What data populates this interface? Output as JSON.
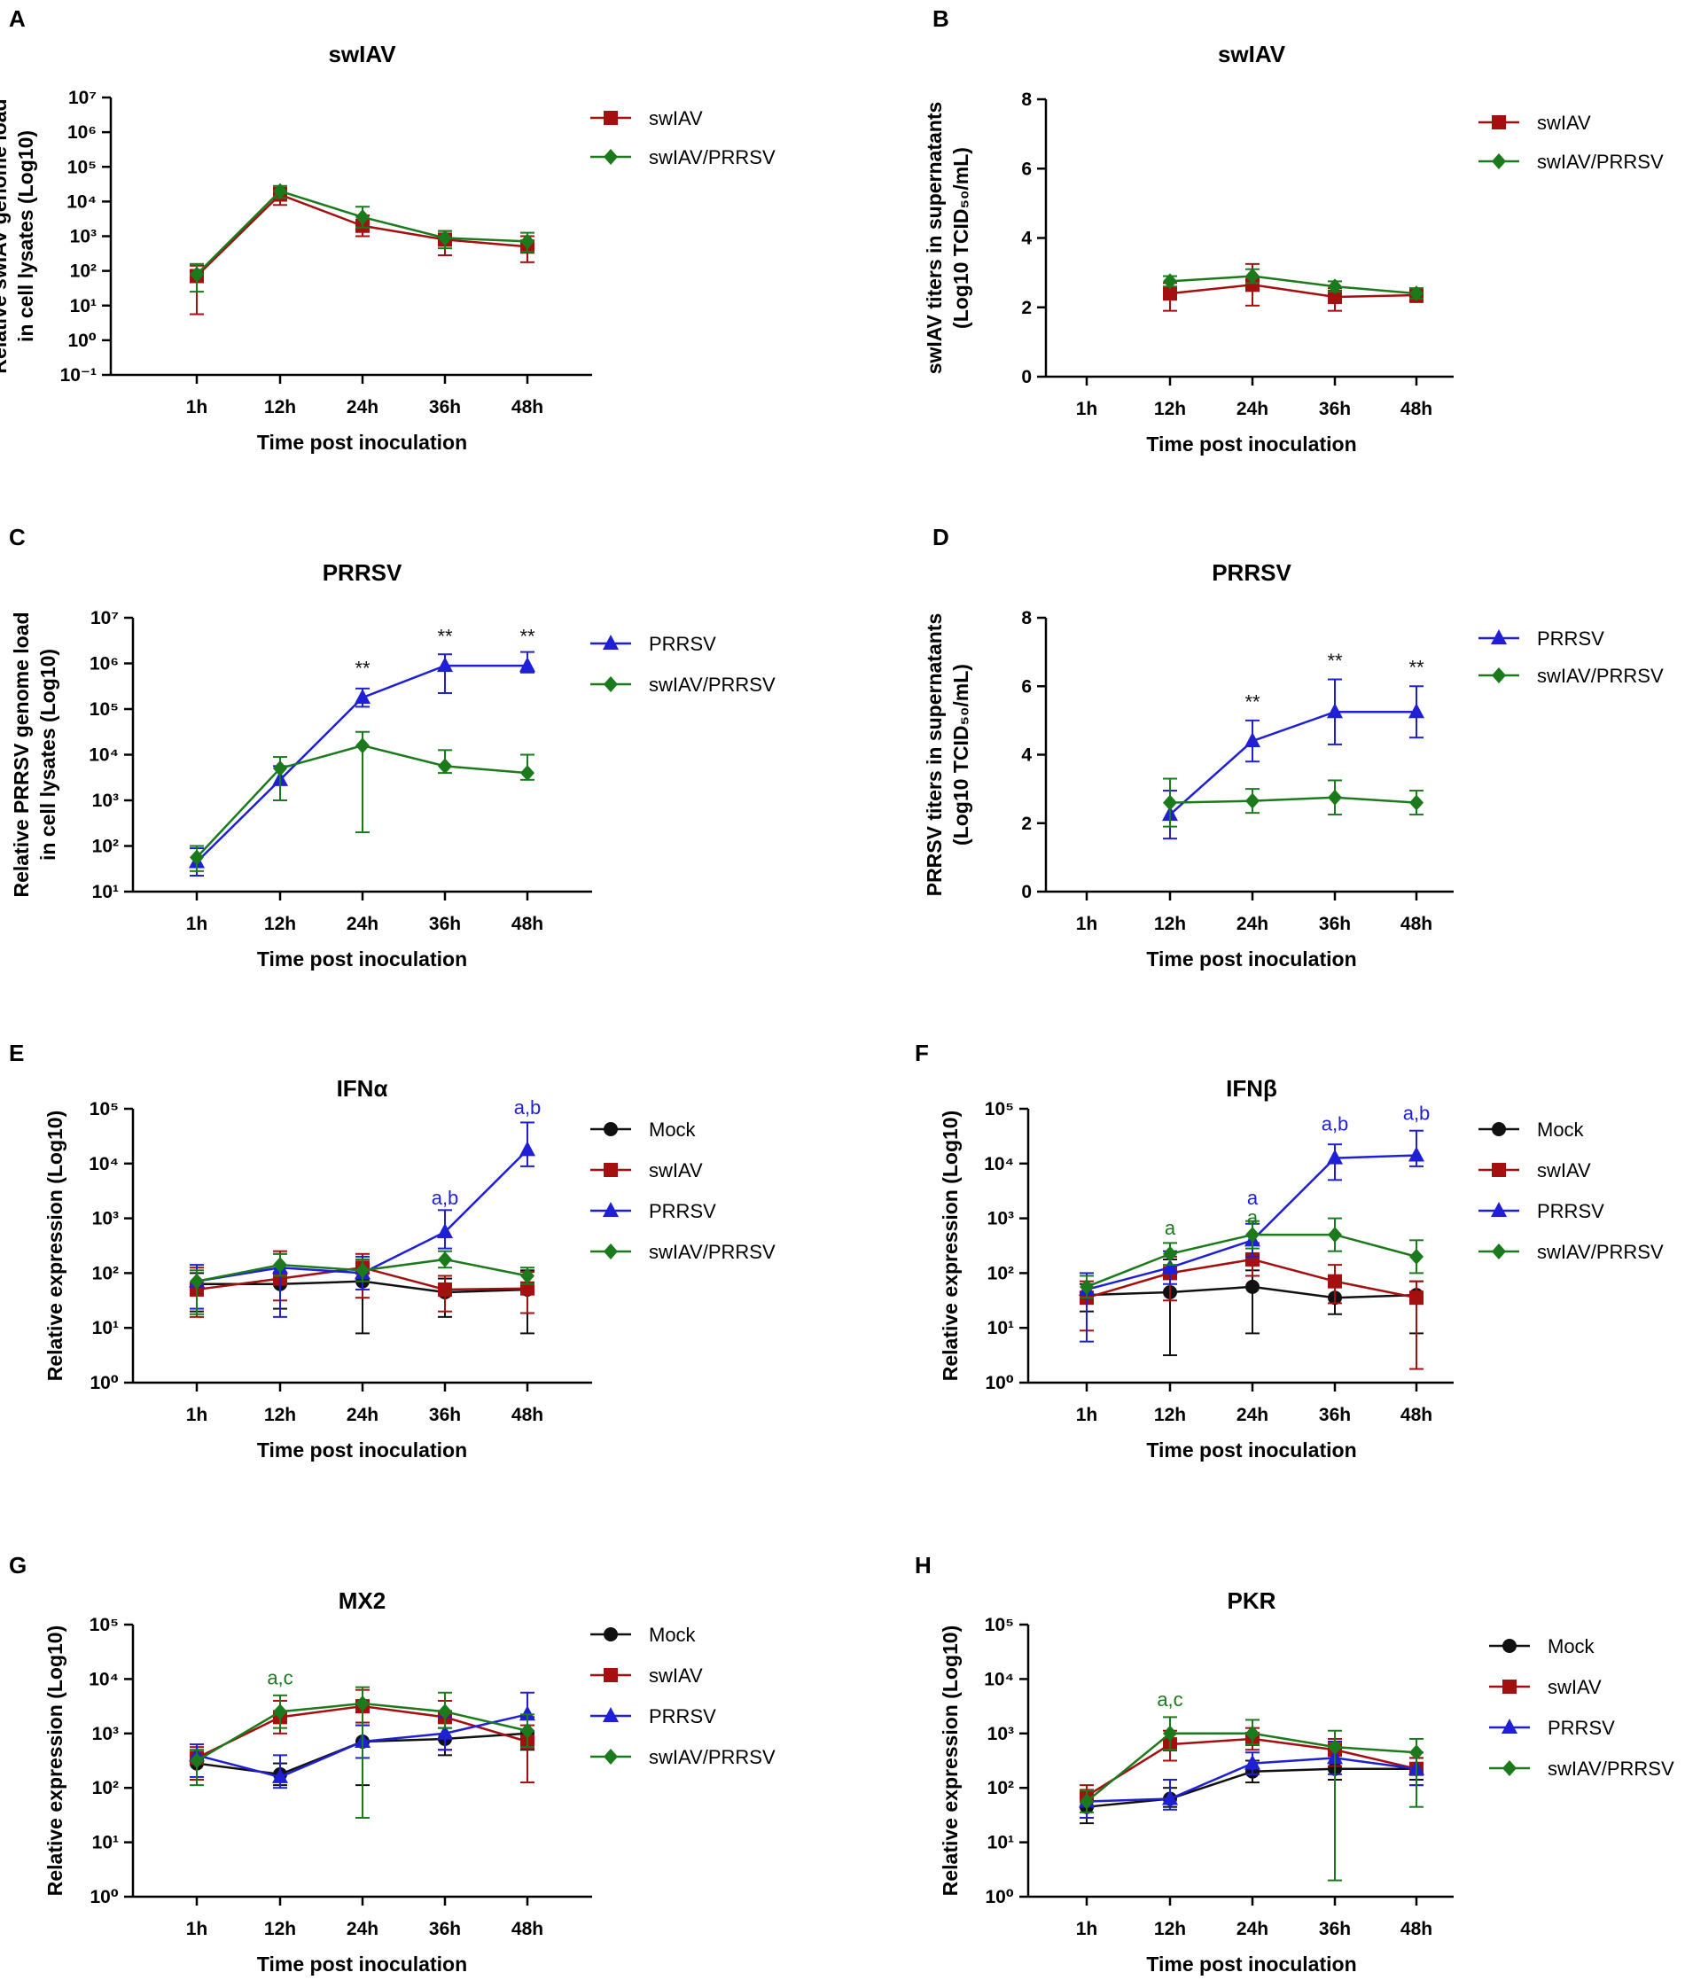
{
  "colors": {
    "Mock": "#111111",
    "swIAV": "#a40f0f",
    "PRRSV": "#1f1fd6",
    "swIAV/PRRSV": "#1b7a1b"
  },
  "markers": {
    "Mock": "circle",
    "swIAV": "square",
    "PRRSV": "triangle",
    "swIAV/PRRSV": "diamond"
  },
  "chart_data": [
    {
      "panel": "A",
      "type": "line",
      "title": "swIAV",
      "xlabel": "Time post inoculation",
      "ylabel": [
        "Relative swIAV genome load",
        "in cell lysates (Log10)"
      ],
      "categories": [
        "1h",
        "12h",
        "24h",
        "36h",
        "48h"
      ],
      "yscale": "log",
      "ylim": [
        -1,
        7
      ],
      "yticks": [
        "10⁻¹",
        "10⁰",
        "10¹",
        "10²",
        "10³",
        "10⁴",
        "10⁵",
        "10⁶",
        "10⁷"
      ],
      "legend": [
        "swIAV",
        "swIAV/PRRSV"
      ],
      "series": [
        {
          "name": "swIAV",
          "values": [
            1.85,
            4.2,
            3.3,
            2.9,
            2.7
          ],
          "err_up": [
            0.3,
            0.2,
            0.3,
            0.25,
            0.3
          ],
          "err_down": [
            1.1,
            0.3,
            0.3,
            0.45,
            0.45
          ]
        },
        {
          "name": "swIAV/PRRSV",
          "values": [
            1.9,
            4.3,
            3.55,
            2.95,
            2.85
          ],
          "err_up": [
            0.3,
            0.15,
            0.3,
            0.2,
            0.25
          ],
          "err_down": [
            0.5,
            0.2,
            0.3,
            0.3,
            0.3
          ]
        }
      ],
      "annotations": []
    },
    {
      "panel": "B",
      "type": "line",
      "title": "swIAV",
      "xlabel": "Time post inoculation",
      "ylabel": [
        "swIAV titers in supernatants",
        "(Log10 TCID₅₀/mL)"
      ],
      "categories": [
        "1h",
        "12h",
        "24h",
        "36h",
        "48h"
      ],
      "yscale": "linear",
      "ylim": [
        0,
        8
      ],
      "yticks": [
        "0",
        "2",
        "4",
        "6",
        "8"
      ],
      "legend": [
        "swIAV",
        "swIAV/PRRSV"
      ],
      "series": [
        {
          "name": "swIAV",
          "start": 1,
          "values": [
            null,
            2.4,
            2.65,
            2.3,
            2.35
          ],
          "err_up": [
            0,
            0.3,
            0.6,
            0.25,
            0.2
          ],
          "err_down": [
            0,
            0.5,
            0.6,
            0.4,
            0.2
          ]
        },
        {
          "name": "swIAV/PRRSV",
          "start": 1,
          "values": [
            null,
            2.75,
            2.9,
            2.6,
            2.4
          ],
          "err_up": [
            0,
            0.15,
            0.2,
            0.15,
            0.15
          ],
          "err_down": [
            0,
            0.15,
            0.2,
            0.15,
            0.15
          ]
        }
      ],
      "annotations": []
    },
    {
      "panel": "C",
      "type": "line",
      "title": "PRRSV",
      "xlabel": "Time post inoculation",
      "ylabel": [
        "Relative PRRSV genome load",
        "in cell lysates (Log10)"
      ],
      "categories": [
        "1h",
        "12h",
        "24h",
        "36h",
        "48h"
      ],
      "yscale": "log",
      "ylim": [
        1,
        7
      ],
      "yticks": [
        "10¹",
        "10²",
        "10³",
        "10⁴",
        "10⁵",
        "10⁶",
        "10⁷"
      ],
      "legend": [
        "PRRSV",
        "swIAV/PRRSV"
      ],
      "series": [
        {
          "name": "PRRSV",
          "values": [
            1.65,
            3.45,
            5.25,
            5.95,
            5.95
          ],
          "err_up": [
            0.3,
            0.3,
            0.2,
            0.25,
            0.3
          ],
          "err_down": [
            0.3,
            0.45,
            0.2,
            0.6,
            0.15
          ]
        },
        {
          "name": "swIAV/PRRSV",
          "values": [
            1.75,
            3.7,
            4.2,
            3.75,
            3.6
          ],
          "err_up": [
            0.25,
            0.25,
            0.3,
            0.35,
            0.4
          ],
          "err_down": [
            0.3,
            0.7,
            1.9,
            0.15,
            0.15
          ]
        }
      ],
      "annotations": [
        {
          "text": "**",
          "x": "24h",
          "y": 5.75,
          "color": "#111111"
        },
        {
          "text": "**",
          "x": "36h",
          "y": 6.45,
          "color": "#111111"
        },
        {
          "text": "**",
          "x": "48h",
          "y": 6.45,
          "color": "#111111"
        }
      ]
    },
    {
      "panel": "D",
      "type": "line",
      "title": "PRRSV",
      "xlabel": "Time post inoculation",
      "ylabel": [
        "PRRSV titers in supernatants",
        "(Log10 TCID₅₀/mL)"
      ],
      "categories": [
        "1h",
        "12h",
        "24h",
        "36h",
        "48h"
      ],
      "yscale": "linear",
      "ylim": [
        0,
        8
      ],
      "yticks": [
        "0",
        "2",
        "4",
        "6",
        "8"
      ],
      "legend": [
        "PRRSV",
        "swIAV/PRRSV"
      ],
      "series": [
        {
          "name": "PRRSV",
          "start": 1,
          "values": [
            null,
            2.25,
            4.4,
            5.25,
            5.25
          ],
          "err_up": [
            0,
            0.7,
            0.6,
            0.95,
            0.75
          ],
          "err_down": [
            0,
            0.7,
            0.6,
            0.95,
            0.75
          ]
        },
        {
          "name": "swIAV/PRRSV",
          "start": 1,
          "values": [
            null,
            2.6,
            2.65,
            2.75,
            2.6
          ],
          "err_up": [
            0,
            0.7,
            0.35,
            0.5,
            0.35
          ],
          "err_down": [
            0,
            0.7,
            0.35,
            0.5,
            0.35
          ]
        }
      ],
      "annotations": [
        {
          "text": "**",
          "x": "24h",
          "y": 5.35,
          "color": "#111111"
        },
        {
          "text": "**",
          "x": "36h",
          "y": 6.55,
          "color": "#111111"
        },
        {
          "text": "**",
          "x": "48h",
          "y": 6.35,
          "color": "#111111"
        }
      ]
    },
    {
      "panel": "E",
      "type": "line",
      "title": "IFNα",
      "xlabel": "Time post inoculation",
      "ylabel": [
        "Relative expression (Log10)"
      ],
      "categories": [
        "1h",
        "12h",
        "24h",
        "36h",
        "48h"
      ],
      "yscale": "log",
      "ylim": [
        0,
        5
      ],
      "yticks": [
        "10⁰",
        "10¹",
        "10²",
        "10³",
        "10⁴",
        "10⁵"
      ],
      "legend": [
        "Mock",
        "swIAV",
        "PRRSV",
        "swIAV/PRRSV"
      ],
      "series": [
        {
          "name": "Mock",
          "values": [
            1.8,
            1.8,
            1.85,
            1.65,
            1.7
          ],
          "err_up": [
            0.2,
            0.2,
            0.3,
            0.25,
            0.35
          ],
          "err_down": [
            0.5,
            0.45,
            0.95,
            0.45,
            0.8
          ]
        },
        {
          "name": "swIAV",
          "values": [
            1.7,
            1.9,
            2.1,
            1.7,
            1.72
          ],
          "err_up": [
            0.4,
            0.5,
            0.25,
            0.25,
            0.3
          ],
          "err_down": [
            0.5,
            0.4,
            0.55,
            0.4,
            0.45
          ]
        },
        {
          "name": "PRRSV",
          "values": [
            1.85,
            2.1,
            2.0,
            2.75,
            4.25
          ],
          "err_up": [
            0.3,
            0.25,
            0.3,
            0.4,
            0.5
          ],
          "err_down": [
            0.5,
            0.9,
            0.3,
            0.3,
            0.3
          ]
        },
        {
          "name": "swIAV/PRRSV",
          "values": [
            1.85,
            2.15,
            2.05,
            2.25,
            1.95
          ],
          "err_up": [
            0.2,
            0.2,
            0.2,
            0.15,
            0.15
          ],
          "err_down": [
            0.6,
            0.2,
            0.2,
            0.15,
            0.15
          ]
        }
      ],
      "annotations": [
        {
          "text": "a,b",
          "x": "36h",
          "y": 3.25,
          "color": "#1f1fd6"
        },
        {
          "text": "a,b",
          "x": "48h",
          "y": 4.9,
          "color": "#1f1fd6"
        }
      ]
    },
    {
      "panel": "F",
      "type": "line",
      "title": "IFNβ",
      "xlabel": "Time post inoculation",
      "ylabel": [
        "Relative expression (Log10)"
      ],
      "categories": [
        "1h",
        "12h",
        "24h",
        "36h",
        "48h"
      ],
      "yscale": "log",
      "ylim": [
        0,
        5
      ],
      "yticks": [
        "10⁰",
        "10¹",
        "10²",
        "10³",
        "10⁴",
        "10⁵"
      ],
      "legend": [
        "Mock",
        "swIAV",
        "PRRSV",
        "swIAV/PRRSV"
      ],
      "series": [
        {
          "name": "Mock",
          "values": [
            1.6,
            1.65,
            1.75,
            1.55,
            1.6
          ],
          "err_up": [
            0.2,
            0.6,
            0.3,
            0.25,
            0.25
          ],
          "err_down": [
            0.3,
            1.15,
            0.85,
            0.3,
            0.7
          ]
        },
        {
          "name": "swIAV",
          "values": [
            1.55,
            2.0,
            2.25,
            1.85,
            1.55
          ],
          "err_up": [
            0.3,
            0.3,
            0.3,
            0.3,
            0.3
          ],
          "err_down": [
            0.6,
            0.5,
            0.3,
            0.4,
            1.3
          ]
        },
        {
          "name": "PRRSV",
          "values": [
            1.7,
            2.1,
            2.6,
            4.1,
            4.15
          ],
          "err_up": [
            0.3,
            0.3,
            0.3,
            0.25,
            0.45
          ],
          "err_down": [
            0.95,
            0.3,
            0.3,
            0.4,
            0.2
          ]
        },
        {
          "name": "swIAV/PRRSV",
          "values": [
            1.75,
            2.35,
            2.7,
            2.7,
            2.3
          ],
          "err_up": [
            0.2,
            0.2,
            0.25,
            0.3,
            0.3
          ],
          "err_down": [
            0.2,
            0.2,
            0.25,
            0.3,
            0.3
          ]
        }
      ],
      "annotations": [
        {
          "text": "a",
          "x": "12h",
          "y": 2.7,
          "color": "#1b7a1b"
        },
        {
          "text": "a",
          "x": "24h",
          "y": 2.9,
          "color": "#1b7a1b"
        },
        {
          "text": "a",
          "x": "24h",
          "y": 3.25,
          "color": "#1f1fd6"
        },
        {
          "text": "a,b",
          "x": "36h",
          "y": 4.6,
          "color": "#1f1fd6"
        },
        {
          "text": "a,b",
          "x": "48h",
          "y": 4.8,
          "color": "#1f1fd6"
        }
      ]
    },
    {
      "panel": "G",
      "type": "line",
      "title": "MX2",
      "xlabel": "Time post inoculation",
      "ylabel": [
        "Relative expression (Log10)"
      ],
      "categories": [
        "1h",
        "12h",
        "24h",
        "36h",
        "48h"
      ],
      "yscale": "log",
      "ylim": [
        0,
        5
      ],
      "yticks": [
        "10⁰",
        "10¹",
        "10²",
        "10³",
        "10⁴",
        "10⁵"
      ],
      "legend": [
        "Mock",
        "swIAV",
        "PRRSV",
        "swIAV/PRRSV"
      ],
      "series": [
        {
          "name": "Mock",
          "values": [
            2.45,
            2.25,
            2.85,
            2.9,
            3.0
          ],
          "err_up": [
            0.2,
            0.2,
            0.3,
            0.2,
            0.3
          ],
          "err_down": [
            0.3,
            0.2,
            0.8,
            0.3,
            0.3
          ]
        },
        {
          "name": "swIAV",
          "values": [
            2.55,
            3.3,
            3.5,
            3.3,
            2.85
          ],
          "err_up": [
            0.2,
            0.3,
            0.3,
            0.3,
            0.3
          ],
          "err_down": [
            0.4,
            0.3,
            0.3,
            0.6,
            0.75
          ]
        },
        {
          "name": "PRRSV",
          "values": [
            2.6,
            2.2,
            2.85,
            3.0,
            3.35
          ],
          "err_up": [
            0.2,
            0.4,
            0.3,
            0.3,
            0.4
          ],
          "err_down": [
            0.4,
            0.2,
            0.3,
            0.3,
            0.3
          ]
        },
        {
          "name": "swIAV/PRRSV",
          "values": [
            2.5,
            3.4,
            3.55,
            3.4,
            3.05
          ],
          "err_up": [
            0.2,
            0.3,
            0.3,
            0.35,
            0.3
          ],
          "err_down": [
            0.45,
            0.3,
            2.1,
            0.3,
            0.3
          ]
        }
      ],
      "annotations": [
        {
          "text": "a,c",
          "x": "12h",
          "y": 3.9,
          "color": "#1b7a1b"
        }
      ]
    },
    {
      "panel": "H",
      "type": "line",
      "title": "PKR",
      "xlabel": "Time post inoculation",
      "ylabel": [
        "Relative expression (Log10)"
      ],
      "categories": [
        "1h",
        "12h",
        "24h",
        "36h",
        "48h"
      ],
      "yscale": "log",
      "ylim": [
        0,
        5
      ],
      "yticks": [
        "10⁰",
        "10¹",
        "10²",
        "10³",
        "10⁴",
        "10⁵"
      ],
      "legend": [
        "Mock",
        "swIAV",
        "PRRSV",
        "swIAV/PRRSV"
      ],
      "series": [
        {
          "name": "Mock",
          "values": [
            1.65,
            1.8,
            2.3,
            2.35,
            2.35
          ],
          "err_up": [
            0.2,
            0.2,
            0.2,
            0.3,
            0.2
          ],
          "err_down": [
            0.3,
            0.15,
            0.2,
            0.2,
            0.2
          ]
        },
        {
          "name": "swIAV",
          "values": [
            1.85,
            2.8,
            2.9,
            2.7,
            2.35
          ],
          "err_up": [
            0.2,
            0.25,
            0.2,
            0.2,
            0.2
          ],
          "err_down": [
            0.4,
            0.3,
            0.2,
            0.3,
            0.3
          ]
        },
        {
          "name": "PRRSV",
          "values": [
            1.75,
            1.8,
            2.45,
            2.55,
            2.35
          ],
          "err_up": [
            0.2,
            0.35,
            0.2,
            0.3,
            0.3
          ],
          "err_down": [
            0.3,
            0.2,
            0.2,
            0.3,
            0.3
          ]
        },
        {
          "name": "swIAV/PRRSV",
          "values": [
            1.75,
            3.0,
            3.0,
            2.75,
            2.65
          ],
          "err_up": [
            0.2,
            0.3,
            0.25,
            0.3,
            0.25
          ],
          "err_down": [
            0.2,
            0.3,
            0.2,
            2.45,
            1.0
          ]
        }
      ],
      "annotations": [
        {
          "text": "a,c",
          "x": "12h",
          "y": 3.5,
          "color": "#1b7a1b"
        }
      ]
    }
  ]
}
